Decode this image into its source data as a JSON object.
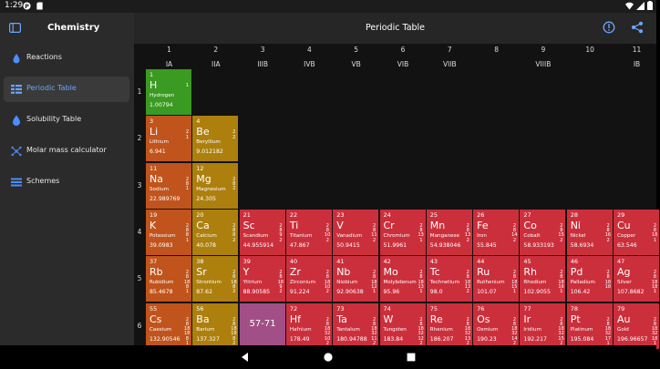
{
  "status_bar": {
    "time": "1:29",
    "icons": [
      "p-notification-icon",
      "sd-card-icon",
      "wifi-icon",
      "signal-icon",
      "battery-icon"
    ]
  },
  "sidebar": {
    "title": "Chemistry",
    "items": [
      {
        "label": "Reactions",
        "icon": "flask-drop-icon",
        "active": false
      },
      {
        "label": "Periodic Table",
        "icon": "table-grid-icon",
        "active": true
      },
      {
        "label": "Solubility Table",
        "icon": "drop-icon",
        "active": false
      },
      {
        "label": "Molar mass calculator",
        "icon": "atom-icon",
        "active": false
      },
      {
        "label": "Schemes",
        "icon": "list-icon",
        "active": false
      }
    ]
  },
  "header": {
    "title": "Periodic Table",
    "actions": [
      "info-icon",
      "share-icon"
    ]
  },
  "colors": {
    "nonmetal": "#3a9a21",
    "alkali": "#c0541c",
    "alkaline_earth": "#ad7f0d",
    "transition": "#cc2f3c",
    "lanthanide_group": "#a14f86",
    "accent": "#6aa6ff"
  },
  "groups": [
    {
      "num": "1",
      "name": "IA"
    },
    {
      "num": "2",
      "name": "IIA"
    },
    {
      "num": "3",
      "name": "IIIB"
    },
    {
      "num": "4",
      "name": "IVB"
    },
    {
      "num": "5",
      "name": "VB"
    },
    {
      "num": "6",
      "name": "VIB"
    },
    {
      "num": "7",
      "name": "VIIB"
    },
    {
      "num": "8",
      "name": ""
    },
    {
      "num": "9",
      "name": "VIIIB"
    },
    {
      "num": "10",
      "name": ""
    },
    {
      "num": "11",
      "name": "IB"
    }
  ],
  "periods": [
    "1",
    "2",
    "3",
    "4",
    "5",
    "6"
  ],
  "elements": [
    {
      "z": "1",
      "sym": "H",
      "name": "Hydrogen",
      "mass": "1.00794",
      "shells": "1",
      "period": 1,
      "group": 1,
      "cat": "nonmetal"
    },
    {
      "z": "3",
      "sym": "Li",
      "name": "Lithium",
      "mass": "6.941",
      "shells": "2\n1",
      "period": 2,
      "group": 1,
      "cat": "alkali"
    },
    {
      "z": "4",
      "sym": "Be",
      "name": "Beryllium",
      "mass": "9.012182",
      "shells": "2\n2",
      "period": 2,
      "group": 2,
      "cat": "alkaline_earth"
    },
    {
      "z": "11",
      "sym": "Na",
      "name": "Sodium",
      "mass": "22.989769",
      "shells": "2\n8\n1",
      "period": 3,
      "group": 1,
      "cat": "alkali"
    },
    {
      "z": "12",
      "sym": "Mg",
      "name": "Magnesium",
      "mass": "24.305",
      "shells": "2\n8\n2",
      "period": 3,
      "group": 2,
      "cat": "alkaline_earth"
    },
    {
      "z": "19",
      "sym": "K",
      "name": "Potassium",
      "mass": "39.0983",
      "shells": "2\n8\n8\n1",
      "period": 4,
      "group": 1,
      "cat": "alkali"
    },
    {
      "z": "20",
      "sym": "Ca",
      "name": "Calcium",
      "mass": "40.078",
      "shells": "2\n8\n8\n2",
      "period": 4,
      "group": 2,
      "cat": "alkaline_earth"
    },
    {
      "z": "21",
      "sym": "Sc",
      "name": "Scandium",
      "mass": "44.955914",
      "shells": "2\n8\n9\n2",
      "period": 4,
      "group": 3,
      "cat": "transition"
    },
    {
      "z": "22",
      "sym": "Ti",
      "name": "Titanium",
      "mass": "47.867",
      "shells": "2\n8\n10\n2",
      "period": 4,
      "group": 4,
      "cat": "transition"
    },
    {
      "z": "23",
      "sym": "V",
      "name": "Vanadium",
      "mass": "50.9415",
      "shells": "2\n8\n11\n2",
      "period": 4,
      "group": 5,
      "cat": "transition"
    },
    {
      "z": "24",
      "sym": "Cr",
      "name": "Chromium",
      "mass": "51.9961",
      "shells": "2\n8\n13\n1",
      "period": 4,
      "group": 6,
      "cat": "transition"
    },
    {
      "z": "25",
      "sym": "Mn",
      "name": "Manganese",
      "mass": "54.938046",
      "shells": "2\n8\n13\n2",
      "period": 4,
      "group": 7,
      "cat": "transition"
    },
    {
      "z": "26",
      "sym": "Fe",
      "name": "Iron",
      "mass": "55.845",
      "shells": "2\n8\n14\n2",
      "period": 4,
      "group": 8,
      "cat": "transition"
    },
    {
      "z": "27",
      "sym": "Co",
      "name": "Cobalt",
      "mass": "58.933193",
      "shells": "2\n8\n15\n2",
      "period": 4,
      "group": 9,
      "cat": "transition"
    },
    {
      "z": "28",
      "sym": "Ni",
      "name": "Nickel",
      "mass": "58.6934",
      "shells": "2\n8\n16\n2",
      "period": 4,
      "group": 10,
      "cat": "transition"
    },
    {
      "z": "29",
      "sym": "Cu",
      "name": "Copper",
      "mass": "63.546",
      "shells": "2\n8\n18\n1",
      "period": 4,
      "group": 11,
      "cat": "transition"
    },
    {
      "z": "37",
      "sym": "Rb",
      "name": "Rubidium",
      "mass": "85.4678",
      "shells": "2\n8\n18\n8\n1",
      "period": 5,
      "group": 1,
      "cat": "alkali"
    },
    {
      "z": "38",
      "sym": "Sr",
      "name": "Strontium",
      "mass": "87.62",
      "shells": "2\n8\n18\n8\n2",
      "period": 5,
      "group": 2,
      "cat": "alkaline_earth"
    },
    {
      "z": "39",
      "sym": "Y",
      "name": "Yttrium",
      "mass": "88.90585",
      "shells": "2\n8\n18\n9\n2",
      "period": 5,
      "group": 3,
      "cat": "transition"
    },
    {
      "z": "40",
      "sym": "Zr",
      "name": "Zirconium",
      "mass": "91.224",
      "shells": "2\n8\n18\n10\n2",
      "period": 5,
      "group": 4,
      "cat": "transition"
    },
    {
      "z": "41",
      "sym": "Nb",
      "name": "Niobium",
      "mass": "92.90638",
      "shells": "2\n8\n18\n12\n1",
      "period": 5,
      "group": 5,
      "cat": "transition"
    },
    {
      "z": "42",
      "sym": "Mo",
      "name": "Molybdenum",
      "mass": "95.96",
      "shells": "2\n8\n18\n13\n1",
      "period": 5,
      "group": 6,
      "cat": "transition"
    },
    {
      "z": "43",
      "sym": "Tc",
      "name": "Technetium",
      "mass": "98.0",
      "shells": "2\n8\n18\n13\n2",
      "period": 5,
      "group": 7,
      "cat": "transition"
    },
    {
      "z": "44",
      "sym": "Ru",
      "name": "Ruthenium",
      "mass": "101.07",
      "shells": "2\n8\n18\n15\n1",
      "period": 5,
      "group": 8,
      "cat": "transition"
    },
    {
      "z": "45",
      "sym": "Rh",
      "name": "Rhodium",
      "mass": "102.9055",
      "shells": "2\n8\n18\n16\n1",
      "period": 5,
      "group": 9,
      "cat": "transition"
    },
    {
      "z": "46",
      "sym": "Pd",
      "name": "Palladium",
      "mass": "106.42",
      "shells": "2\n8\n18\n18",
      "period": 5,
      "group": 10,
      "cat": "transition"
    },
    {
      "z": "47",
      "sym": "Ag",
      "name": "Silver",
      "mass": "107.8682",
      "shells": "2\n8\n18\n18\n1",
      "period": 5,
      "group": 11,
      "cat": "transition"
    },
    {
      "z": "55",
      "sym": "Cs",
      "name": "Caesium",
      "mass": "132.90546",
      "shells": "2\n8\n18\n18\n8\n1",
      "period": 6,
      "group": 1,
      "cat": "alkali"
    },
    {
      "z": "56",
      "sym": "Ba",
      "name": "Barium",
      "mass": "137.327",
      "shells": "2\n8\n18\n18\n8\n2",
      "period": 6,
      "group": 2,
      "cat": "alkaline_earth"
    },
    {
      "z": "",
      "sym": "",
      "name": "",
      "mass": "",
      "shells": "",
      "range": "57-71",
      "period": 6,
      "group": 3,
      "cat": "lanthanide_group"
    },
    {
      "z": "72",
      "sym": "Hf",
      "name": "Hafnium",
      "mass": "178.49",
      "shells": "2\n8\n18\n32\n10\n2",
      "period": 6,
      "group": 4,
      "cat": "transition"
    },
    {
      "z": "73",
      "sym": "Ta",
      "name": "Tantalum",
      "mass": "180.94788",
      "shells": "2\n8\n18\n32\n11\n2",
      "period": 6,
      "group": 5,
      "cat": "transition"
    },
    {
      "z": "74",
      "sym": "W",
      "name": "Tungsten",
      "mass": "183.84",
      "shells": "2\n8\n18\n32\n12\n2",
      "period": 6,
      "group": 6,
      "cat": "transition"
    },
    {
      "z": "75",
      "sym": "Re",
      "name": "Rhenium",
      "mass": "186.207",
      "shells": "2\n8\n18\n32\n13\n2",
      "period": 6,
      "group": 7,
      "cat": "transition"
    },
    {
      "z": "76",
      "sym": "Os",
      "name": "Osmium",
      "mass": "190.23",
      "shells": "2\n8\n18\n32\n14\n2",
      "period": 6,
      "group": 8,
      "cat": "transition"
    },
    {
      "z": "77",
      "sym": "Ir",
      "name": "Iridium",
      "mass": "192.217",
      "shells": "2\n8\n18\n32\n15\n2",
      "period": 6,
      "group": 9,
      "cat": "transition"
    },
    {
      "z": "78",
      "sym": "Pt",
      "name": "Platinum",
      "mass": "195.084",
      "shells": "2\n8\n18\n32\n17\n1",
      "period": 6,
      "group": 10,
      "cat": "transition"
    },
    {
      "z": "79",
      "sym": "Au",
      "name": "Gold",
      "mass": "196.96657",
      "shells": "2\n8\n18\n32\n18\n1",
      "period": 6,
      "group": 11,
      "cat": "transition"
    }
  ],
  "nav_bar": [
    "back-icon",
    "home-icon",
    "recents-icon"
  ]
}
